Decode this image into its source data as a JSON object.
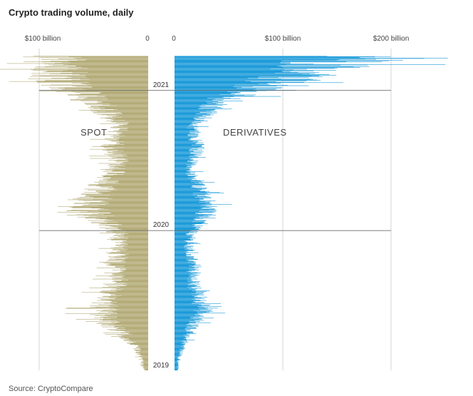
{
  "title": "Crypto trading volume, daily",
  "source": "Source: CryptoCompare",
  "colors": {
    "spot": "#b3ab77",
    "derivatives": "#1a9ad9",
    "grid": "#d6d6d6",
    "yearline": "#555555"
  },
  "chart_data": {
    "type": "bar",
    "orientation": "horizontal-mirrored",
    "panels": [
      {
        "name": "SPOT",
        "direction": "left",
        "ticks": [
          {
            "value": 100,
            "label": "$100 billion"
          },
          {
            "value": 0,
            "label": "0"
          }
        ]
      },
      {
        "name": "DERIVATIVES",
        "direction": "right",
        "ticks": [
          {
            "value": 0,
            "label": "0"
          },
          {
            "value": 100,
            "label": "$100 billion"
          },
          {
            "value": 200,
            "label": "$200 billion"
          }
        ]
      }
    ],
    "y_axis": {
      "start": "2019-01-01",
      "end": "2021-03-31",
      "year_labels": [
        "2021",
        "2020",
        "2019"
      ]
    },
    "series": [
      {
        "name": "SPOT",
        "anchors": [
          {
            "date": "2019-01-01",
            "value": 4
          },
          {
            "date": "2019-02-01",
            "value": 6
          },
          {
            "date": "2019-03-01",
            "value": 12
          },
          {
            "date": "2019-04-01",
            "value": 22
          },
          {
            "date": "2019-05-01",
            "value": 38
          },
          {
            "date": "2019-06-01",
            "value": 45
          },
          {
            "date": "2019-07-01",
            "value": 40
          },
          {
            "date": "2019-08-01",
            "value": 34
          },
          {
            "date": "2019-09-01",
            "value": 28
          },
          {
            "date": "2019-10-01",
            "value": 32
          },
          {
            "date": "2019-11-01",
            "value": 29
          },
          {
            "date": "2019-12-01",
            "value": 26
          },
          {
            "date": "2020-01-01",
            "value": 30
          },
          {
            "date": "2020-02-01",
            "value": 48
          },
          {
            "date": "2020-03-01",
            "value": 62
          },
          {
            "date": "2020-04-01",
            "value": 50
          },
          {
            "date": "2020-05-01",
            "value": 42
          },
          {
            "date": "2020-06-01",
            "value": 32
          },
          {
            "date": "2020-07-01",
            "value": 28
          },
          {
            "date": "2020-08-01",
            "value": 36
          },
          {
            "date": "2020-09-01",
            "value": 30
          },
          {
            "date": "2020-10-01",
            "value": 26
          },
          {
            "date": "2020-11-01",
            "value": 38
          },
          {
            "date": "2020-12-01",
            "value": 52
          },
          {
            "date": "2021-01-01",
            "value": 72
          },
          {
            "date": "2021-02-01",
            "value": 85
          },
          {
            "date": "2021-03-01",
            "value": 88
          },
          {
            "date": "2021-03-31",
            "value": 90
          }
        ]
      },
      {
        "name": "DERIVATIVES",
        "anchors": [
          {
            "date": "2019-01-01",
            "value": 3
          },
          {
            "date": "2019-02-01",
            "value": 4
          },
          {
            "date": "2019-03-01",
            "value": 8
          },
          {
            "date": "2019-04-01",
            "value": 12
          },
          {
            "date": "2019-05-01",
            "value": 18
          },
          {
            "date": "2019-06-01",
            "value": 28
          },
          {
            "date": "2019-07-01",
            "value": 24
          },
          {
            "date": "2019-08-01",
            "value": 20
          },
          {
            "date": "2019-09-01",
            "value": 16
          },
          {
            "date": "2019-10-01",
            "value": 20
          },
          {
            "date": "2019-11-01",
            "value": 15
          },
          {
            "date": "2019-12-01",
            "value": 14
          },
          {
            "date": "2020-01-01",
            "value": 18
          },
          {
            "date": "2020-02-01",
            "value": 28
          },
          {
            "date": "2020-03-01",
            "value": 34
          },
          {
            "date": "2020-04-01",
            "value": 26
          },
          {
            "date": "2020-05-01",
            "value": 24
          },
          {
            "date": "2020-06-01",
            "value": 15
          },
          {
            "date": "2020-07-01",
            "value": 17
          },
          {
            "date": "2020-08-01",
            "value": 22
          },
          {
            "date": "2020-09-01",
            "value": 20
          },
          {
            "date": "2020-10-01",
            "value": 18
          },
          {
            "date": "2020-11-01",
            "value": 30
          },
          {
            "date": "2020-12-01",
            "value": 40
          },
          {
            "date": "2021-01-01",
            "value": 72
          },
          {
            "date": "2021-02-01",
            "value": 110
          },
          {
            "date": "2021-03-01",
            "value": 150
          },
          {
            "date": "2021-03-31",
            "value": 170
          }
        ]
      }
    ]
  }
}
